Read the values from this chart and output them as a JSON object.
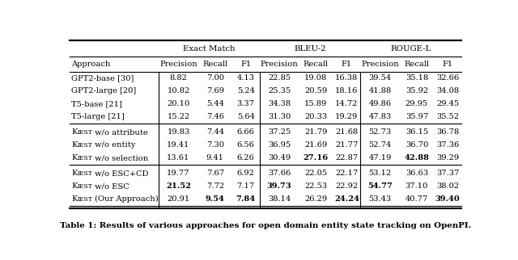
{
  "title": "Table 1: Results of various approaches for open domain entity state tracking on OpenPI.",
  "group_headers": [
    "Exact Match",
    "BLEU-2",
    "ROUGE-L"
  ],
  "col_headers": [
    "Approach",
    "Precision",
    "Recall",
    "F1",
    "Precision",
    "Recall",
    "F1",
    "Precision",
    "Recall",
    "F1"
  ],
  "rows": [
    [
      "GPT2-base [30]",
      "8.82",
      "7.00",
      "4.13",
      "22.85",
      "19.08",
      "16.38",
      "39.54",
      "35.18",
      "32.66"
    ],
    [
      "GPT2-large [20]",
      "10.82",
      "7.69",
      "5.24",
      "25.35",
      "20.59",
      "18.16",
      "41.88",
      "35.92",
      "34.08"
    ],
    [
      "T5-base [21]",
      "20.10",
      "5.44",
      "3.37",
      "34.38",
      "15.89",
      "14.72",
      "49.86",
      "29.95",
      "29.45"
    ],
    [
      "T5-large [21]",
      "15.22",
      "7.46",
      "5.64",
      "31.30",
      "20.33",
      "19.29",
      "47.83",
      "35.97",
      "35.52"
    ],
    [
      "KIEST w/o attribute",
      "19.83",
      "7.44",
      "6.66",
      "37.25",
      "21.79",
      "21.68",
      "52.73",
      "36.15",
      "36.78"
    ],
    [
      "KIEST w/o entity",
      "19.41",
      "7.30",
      "6.56",
      "36.95",
      "21.69",
      "21.77",
      "52.74",
      "36.70",
      "37.36"
    ],
    [
      "KIEST w/o selection",
      "13.61",
      "9.41",
      "6.26",
      "30.49",
      "27.16",
      "22.87",
      "47.19",
      "42.88",
      "39.29"
    ],
    [
      "KIEST w/o ESC+CD",
      "19.77",
      "7.67",
      "6.92",
      "37.66",
      "22.05",
      "22.17",
      "53.12",
      "36.63",
      "37.37"
    ],
    [
      "KIEST w/o ESC",
      "21.52",
      "7.72",
      "7.17",
      "39.73",
      "22.53",
      "22.92",
      "54.77",
      "37.10",
      "38.02"
    ],
    [
      "KIEST (Our Approach)",
      "20.91",
      "9.54",
      "7.84",
      "38.14",
      "26.29",
      "24.24",
      "53.43",
      "40.77",
      "39.40"
    ]
  ],
  "bold_spec": {
    "8": [
      1,
      4,
      7
    ],
    "6": [
      5,
      8
    ],
    "9": [
      2,
      3,
      6,
      9
    ]
  },
  "kiest_rows": [
    4,
    5,
    6,
    7,
    8,
    9
  ],
  "separator_after_rows": [
    3,
    6,
    9
  ],
  "background_color": "#ffffff",
  "fig_width": 6.4,
  "fig_height": 3.22,
  "dpi": 100
}
